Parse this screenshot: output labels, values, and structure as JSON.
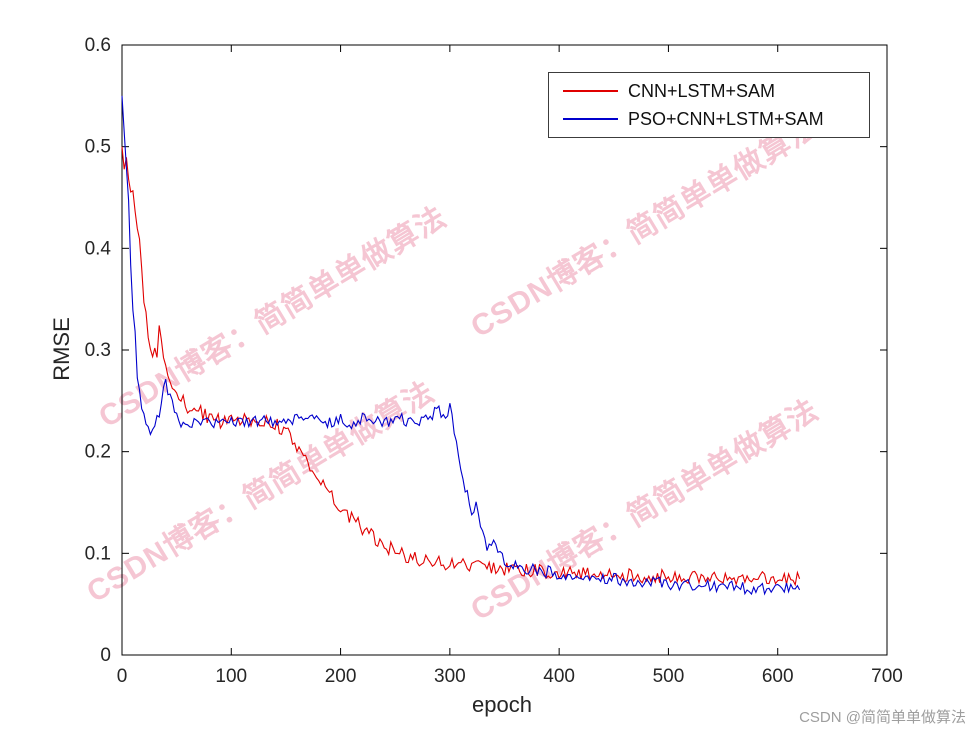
{
  "axes": {
    "xlabel": "epoch",
    "ylabel": "RMSE",
    "xlim": [
      0,
      700
    ],
    "ylim": [
      0,
      0.6
    ],
    "xticks": [
      0,
      100,
      200,
      300,
      400,
      500,
      600,
      700
    ],
    "yticks": [
      0,
      0.1,
      0.2,
      0.3,
      0.4,
      0.5,
      0.6
    ],
    "ytick_labels": [
      "0",
      "0.1",
      "0.2",
      "0.3",
      "0.4",
      "0.5",
      "0.6"
    ],
    "axis_color": "#000000",
    "tick_label_color": "#262626"
  },
  "legend": {
    "entries": [
      {
        "label": "CNN+LSTM+SAM",
        "color": "#e00000"
      },
      {
        "label": "PSO+CNN+LSTM+SAM",
        "color": "#0000cc"
      }
    ]
  },
  "watermark": {
    "text": "CSDN博客：简简单单做算法",
    "color": "#ec8fa8",
    "opacity": 0.5
  },
  "credit": {
    "text": "CSDN @简简单单做算法",
    "color": "#9e9e9e"
  },
  "chart_data": {
    "type": "line",
    "title": "",
    "xlabel": "epoch",
    "ylabel": "RMSE",
    "xlim": [
      0,
      700
    ],
    "ylim": [
      0,
      0.6
    ],
    "grid": false,
    "legend_position": "top-right",
    "x_start": 0,
    "x_step": 5,
    "series": [
      {
        "name": "CNN+LSTM+SAM",
        "color": "#e00000",
        "noise": 0.007,
        "noise_early": {
          "until": 35,
          "amplitude": 0.018
        },
        "values": [
          0.5,
          0.47,
          0.455,
          0.42,
          0.36,
          0.31,
          0.295,
          0.31,
          0.28,
          0.265,
          0.255,
          0.25,
          0.245,
          0.242,
          0.24,
          0.237,
          0.234,
          0.232,
          0.23,
          0.231,
          0.232,
          0.233,
          0.23,
          0.231,
          0.232,
          0.23,
          0.229,
          0.23,
          0.227,
          0.224,
          0.22,
          0.213,
          0.206,
          0.198,
          0.19,
          0.182,
          0.174,
          0.166,
          0.158,
          0.151,
          0.146,
          0.14,
          0.135,
          0.13,
          0.125,
          0.12,
          0.116,
          0.112,
          0.108,
          0.105,
          0.102,
          0.1,
          0.098,
          0.096,
          0.095,
          0.094,
          0.093,
          0.092,
          0.091,
          0.09,
          0.09,
          0.089,
          0.089,
          0.088,
          0.088,
          0.087,
          0.087,
          0.086,
          0.086,
          0.085,
          0.085,
          0.085,
          0.084,
          0.084,
          0.083,
          0.083,
          0.083,
          0.082,
          0.082,
          0.082,
          0.081,
          0.081,
          0.081,
          0.081,
          0.08,
          0.08,
          0.08,
          0.08,
          0.08,
          0.079,
          0.079,
          0.079,
          0.079,
          0.079,
          0.079,
          0.078,
          0.078,
          0.078,
          0.078,
          0.078,
          0.078,
          0.078,
          0.078,
          0.078,
          0.077,
          0.077,
          0.077,
          0.077,
          0.077,
          0.077,
          0.077,
          0.077,
          0.077,
          0.076,
          0.076,
          0.076,
          0.076,
          0.076,
          0.076,
          0.076,
          0.076,
          0.076,
          0.075,
          0.075,
          0.075
        ]
      },
      {
        "name": "PSO+CNN+LSTM+SAM",
        "color": "#0000cc",
        "noise": 0.006,
        "noise_early": {
          "until": 14,
          "amplitude": 0.02
        },
        "values": [
          0.55,
          0.46,
          0.34,
          0.26,
          0.235,
          0.22,
          0.223,
          0.24,
          0.27,
          0.25,
          0.232,
          0.228,
          0.225,
          0.23,
          0.227,
          0.232,
          0.228,
          0.23,
          0.226,
          0.23,
          0.228,
          0.23,
          0.233,
          0.228,
          0.231,
          0.229,
          0.234,
          0.23,
          0.228,
          0.232,
          0.23,
          0.229,
          0.232,
          0.228,
          0.23,
          0.233,
          0.229,
          0.231,
          0.228,
          0.23,
          0.232,
          0.23,
          0.228,
          0.231,
          0.233,
          0.229,
          0.23,
          0.232,
          0.228,
          0.231,
          0.23,
          0.232,
          0.229,
          0.231,
          0.228,
          0.233,
          0.235,
          0.238,
          0.24,
          0.235,
          0.242,
          0.215,
          0.185,
          0.16,
          0.14,
          0.15,
          0.12,
          0.105,
          0.115,
          0.098,
          0.092,
          0.09,
          0.088,
          0.086,
          0.085,
          0.084,
          0.083,
          0.082,
          0.082,
          0.081,
          0.08,
          0.08,
          0.079,
          0.078,
          0.078,
          0.077,
          0.077,
          0.076,
          0.076,
          0.075,
          0.075,
          0.074,
          0.074,
          0.073,
          0.073,
          0.072,
          0.072,
          0.072,
          0.071,
          0.071,
          0.07,
          0.07,
          0.07,
          0.069,
          0.069,
          0.069,
          0.068,
          0.068,
          0.068,
          0.067,
          0.067,
          0.067,
          0.067,
          0.066,
          0.066,
          0.066,
          0.066,
          0.065,
          0.065,
          0.065,
          0.065,
          0.065,
          0.065,
          0.064,
          0.064
        ]
      }
    ]
  }
}
